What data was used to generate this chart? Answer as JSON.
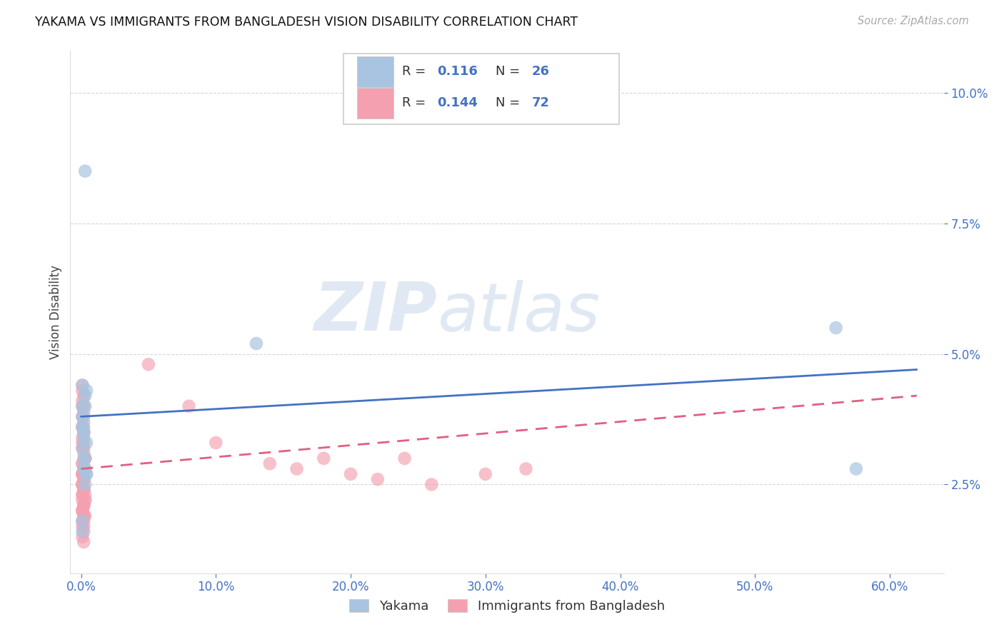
{
  "title": "YAKAMA VS IMMIGRANTS FROM BANGLADESH VISION DISABILITY CORRELATION CHART",
  "source": "Source: ZipAtlas.com",
  "xlabel_ticks": [
    "0.0%",
    "10.0%",
    "20.0%",
    "30.0%",
    "40.0%",
    "50.0%",
    "60.0%"
  ],
  "xlabel_vals": [
    0.0,
    0.1,
    0.2,
    0.3,
    0.4,
    0.5,
    0.6
  ],
  "ylabel_ticks": [
    "2.5%",
    "5.0%",
    "7.5%",
    "10.0%"
  ],
  "ylabel_vals": [
    0.025,
    0.05,
    0.075,
    0.1
  ],
  "ylim": [
    0.008,
    0.108
  ],
  "xlim": [
    -0.008,
    0.64
  ],
  "ylabel": "Vision Disability",
  "legend_labels": [
    "Yakama",
    "Immigrants from Bangladesh"
  ],
  "r_yakama": "0.116",
  "n_yakama": "26",
  "r_bangladesh": "0.144",
  "n_bangladesh": "72",
  "color_yakama": "#a8c4e0",
  "color_bangladesh": "#f4a0b0",
  "line_color_yakama": "#4472c4",
  "line_color_bangladesh": "#e06080",
  "background_color": "#ffffff",
  "watermark_zip": "ZIP",
  "watermark_atlas": "atlas",
  "grid_color": "#cccccc",
  "yakama_x": [
    0.001,
    0.002,
    0.003,
    0.004,
    0.001,
    0.002,
    0.001,
    0.003,
    0.004,
    0.002,
    0.001,
    0.003,
    0.002,
    0.004,
    0.001,
    0.002,
    0.003,
    0.001,
    0.004,
    0.002,
    0.001,
    0.003,
    0.56,
    0.575,
    0.13,
    0.003
  ],
  "yakama_y": [
    0.038,
    0.036,
    0.04,
    0.033,
    0.044,
    0.035,
    0.032,
    0.028,
    0.027,
    0.03,
    0.04,
    0.042,
    0.038,
    0.043,
    0.036,
    0.034,
    0.025,
    0.016,
    0.027,
    0.028,
    0.018,
    0.03,
    0.055,
    0.028,
    0.052,
    0.085
  ],
  "bangladesh_x": [
    0.001,
    0.001,
    0.002,
    0.001,
    0.002,
    0.001,
    0.002,
    0.001,
    0.002,
    0.001,
    0.002,
    0.001,
    0.002,
    0.001,
    0.002,
    0.003,
    0.001,
    0.002,
    0.001,
    0.002,
    0.001,
    0.002,
    0.003,
    0.001,
    0.002,
    0.001,
    0.003,
    0.002,
    0.001,
    0.002,
    0.001,
    0.002,
    0.001,
    0.002,
    0.001,
    0.002,
    0.003,
    0.001,
    0.002,
    0.001,
    0.002,
    0.001,
    0.002,
    0.001,
    0.003,
    0.002,
    0.001,
    0.002,
    0.001,
    0.002,
    0.003,
    0.001,
    0.002,
    0.001,
    0.002,
    0.001,
    0.003,
    0.002,
    0.001,
    0.002,
    0.05,
    0.08,
    0.1,
    0.14,
    0.16,
    0.2,
    0.22,
    0.26,
    0.3,
    0.33,
    0.18,
    0.24
  ],
  "bangladesh_y": [
    0.044,
    0.043,
    0.042,
    0.041,
    0.04,
    0.04,
    0.039,
    0.038,
    0.037,
    0.036,
    0.035,
    0.034,
    0.033,
    0.032,
    0.031,
    0.03,
    0.029,
    0.028,
    0.027,
    0.026,
    0.025,
    0.024,
    0.023,
    0.022,
    0.021,
    0.02,
    0.019,
    0.018,
    0.017,
    0.016,
    0.015,
    0.014,
    0.036,
    0.035,
    0.033,
    0.032,
    0.03,
    0.029,
    0.028,
    0.027,
    0.026,
    0.025,
    0.024,
    0.023,
    0.022,
    0.021,
    0.02,
    0.019,
    0.018,
    0.017,
    0.028,
    0.027,
    0.026,
    0.025,
    0.024,
    0.023,
    0.022,
    0.021,
    0.02,
    0.019,
    0.048,
    0.04,
    0.033,
    0.029,
    0.028,
    0.027,
    0.026,
    0.025,
    0.027,
    0.028,
    0.03,
    0.03
  ],
  "yak_line_x0": 0.0,
  "yak_line_x1": 0.62,
  "yak_line_y0": 0.038,
  "yak_line_y1": 0.047,
  "ban_line_x0": 0.0,
  "ban_line_x1": 0.62,
  "ban_line_y0": 0.028,
  "ban_line_y1": 0.042
}
